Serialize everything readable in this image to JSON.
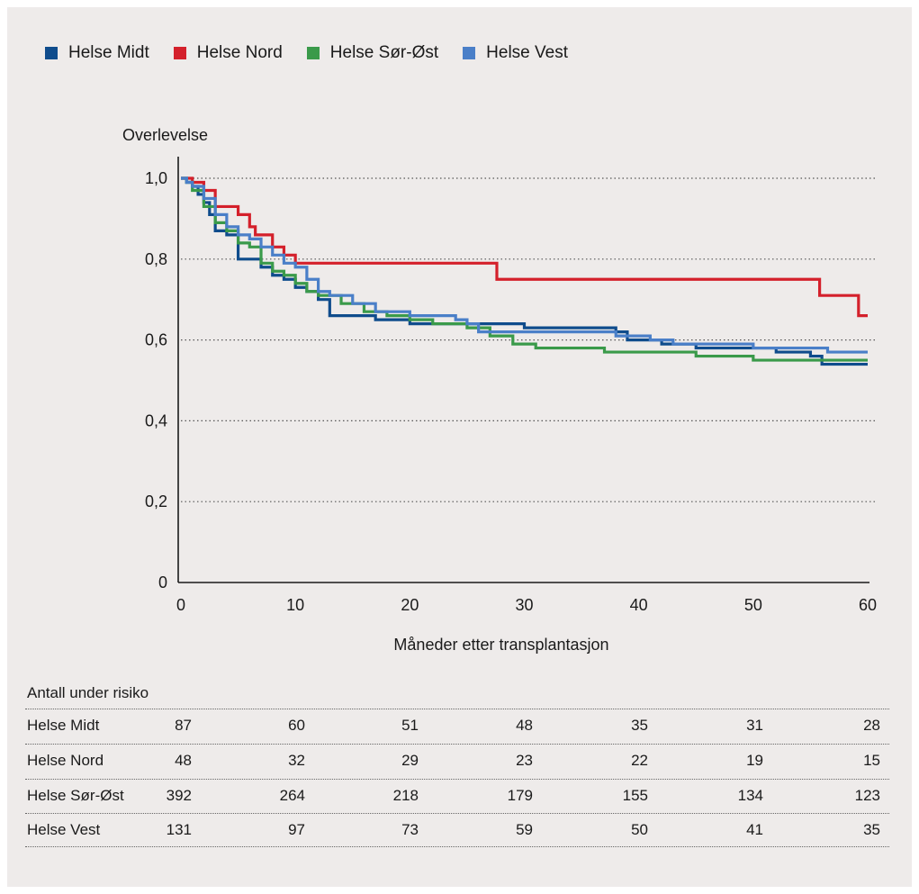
{
  "legend": [
    {
      "label": "Helse Midt",
      "color": "#0f4c8c"
    },
    {
      "label": "Helse Nord",
      "color": "#d4202b"
    },
    {
      "label": "Helse Sør-Øst",
      "color": "#3a9a4a"
    },
    {
      "label": "Helse Vest",
      "color": "#4a7fc8"
    }
  ],
  "chart_data": {
    "type": "line",
    "ylabel": "Overlevelse",
    "xlabel": "Måneder etter transplantasjon",
    "xlim": [
      0,
      60
    ],
    "ylim": [
      0,
      1.0
    ],
    "xticks": [
      "0",
      "10",
      "20",
      "30",
      "40",
      "50",
      "60"
    ],
    "yticks": [
      "0",
      "0,2",
      "0,4",
      "0,6",
      "0,8",
      "1,0"
    ],
    "grid": "horizontal dotted",
    "step": true,
    "series": [
      {
        "name": "Helse Midt",
        "color": "#0f4c8c",
        "points": [
          [
            0,
            1.0
          ],
          [
            0.5,
            0.99
          ],
          [
            1,
            0.98
          ],
          [
            1.5,
            0.96
          ],
          [
            2,
            0.94
          ],
          [
            2.5,
            0.91
          ],
          [
            3,
            0.87
          ],
          [
            4,
            0.86
          ],
          [
            5,
            0.8
          ],
          [
            6,
            0.8
          ],
          [
            7,
            0.78
          ],
          [
            8,
            0.76
          ],
          [
            9,
            0.75
          ],
          [
            10,
            0.73
          ],
          [
            11,
            0.72
          ],
          [
            12,
            0.7
          ],
          [
            13,
            0.66
          ],
          [
            15,
            0.66
          ],
          [
            17,
            0.65
          ],
          [
            20,
            0.64
          ],
          [
            25,
            0.64
          ],
          [
            30,
            0.63
          ],
          [
            38,
            0.62
          ],
          [
            39,
            0.6
          ],
          [
            42,
            0.59
          ],
          [
            45,
            0.58
          ],
          [
            52,
            0.57
          ],
          [
            55,
            0.56
          ],
          [
            56,
            0.54
          ],
          [
            60,
            0.54
          ]
        ]
      },
      {
        "name": "Helse Nord",
        "color": "#d4202b",
        "points": [
          [
            0,
            1.0
          ],
          [
            0.5,
            1.0
          ],
          [
            1,
            0.99
          ],
          [
            2,
            0.97
          ],
          [
            3,
            0.93
          ],
          [
            4,
            0.93
          ],
          [
            5,
            0.91
          ],
          [
            6,
            0.88
          ],
          [
            6.5,
            0.86
          ],
          [
            7,
            0.86
          ],
          [
            8,
            0.83
          ],
          [
            9,
            0.81
          ],
          [
            10,
            0.79
          ],
          [
            20,
            0.79
          ],
          [
            27.5,
            0.79
          ],
          [
            27.6,
            0.75
          ],
          [
            50,
            0.75
          ],
          [
            55.7,
            0.75
          ],
          [
            55.8,
            0.71
          ],
          [
            59,
            0.71
          ],
          [
            59.2,
            0.66
          ],
          [
            60,
            0.66
          ]
        ]
      },
      {
        "name": "Helse Sør-Øst",
        "color": "#3a9a4a",
        "points": [
          [
            0,
            1.0
          ],
          [
            0.5,
            0.99
          ],
          [
            1,
            0.97
          ],
          [
            2,
            0.93
          ],
          [
            3,
            0.89
          ],
          [
            4,
            0.87
          ],
          [
            5,
            0.84
          ],
          [
            6,
            0.83
          ],
          [
            7,
            0.79
          ],
          [
            8,
            0.77
          ],
          [
            9,
            0.76
          ],
          [
            10,
            0.74
          ],
          [
            11,
            0.72
          ],
          [
            12,
            0.71
          ],
          [
            14,
            0.69
          ],
          [
            16,
            0.67
          ],
          [
            18,
            0.66
          ],
          [
            20,
            0.65
          ],
          [
            22,
            0.64
          ],
          [
            25,
            0.63
          ],
          [
            27,
            0.61
          ],
          [
            29,
            0.59
          ],
          [
            31,
            0.58
          ],
          [
            34,
            0.58
          ],
          [
            37,
            0.57
          ],
          [
            40,
            0.57
          ],
          [
            45,
            0.56
          ],
          [
            50,
            0.55
          ],
          [
            55,
            0.55
          ],
          [
            60,
            0.55
          ]
        ]
      },
      {
        "name": "Helse Vest",
        "color": "#4a7fc8",
        "points": [
          [
            0,
            1.0
          ],
          [
            0.5,
            0.99
          ],
          [
            1,
            0.98
          ],
          [
            2,
            0.95
          ],
          [
            3,
            0.91
          ],
          [
            4,
            0.88
          ],
          [
            5,
            0.86
          ],
          [
            6,
            0.85
          ],
          [
            7,
            0.83
          ],
          [
            8,
            0.81
          ],
          [
            9,
            0.79
          ],
          [
            10,
            0.78
          ],
          [
            11,
            0.75
          ],
          [
            12,
            0.72
          ],
          [
            13,
            0.71
          ],
          [
            15,
            0.69
          ],
          [
            17,
            0.67
          ],
          [
            20,
            0.66
          ],
          [
            24,
            0.65
          ],
          [
            25,
            0.64
          ],
          [
            26,
            0.62
          ],
          [
            30,
            0.62
          ],
          [
            38,
            0.61
          ],
          [
            41,
            0.6
          ],
          [
            43,
            0.59
          ],
          [
            46,
            0.59
          ],
          [
            50,
            0.58
          ],
          [
            56,
            0.58
          ],
          [
            56.5,
            0.57
          ],
          [
            60,
            0.57
          ]
        ]
      }
    ]
  },
  "risk_table": {
    "title": "Antall under risiko",
    "rows": [
      {
        "name": "Helse Midt",
        "values": [
          "87",
          "60",
          "51",
          "48",
          "35",
          "31",
          "28"
        ]
      },
      {
        "name": "Helse Nord",
        "values": [
          "48",
          "32",
          "29",
          "23",
          "22",
          "19",
          "15"
        ]
      },
      {
        "name": "Helse Sør-Øst",
        "values": [
          "392",
          "264",
          "218",
          "179",
          "155",
          "134",
          "123"
        ]
      },
      {
        "name": "Helse Vest",
        "values": [
          "131",
          "97",
          "73",
          "59",
          "50",
          "41",
          "35"
        ]
      }
    ]
  }
}
